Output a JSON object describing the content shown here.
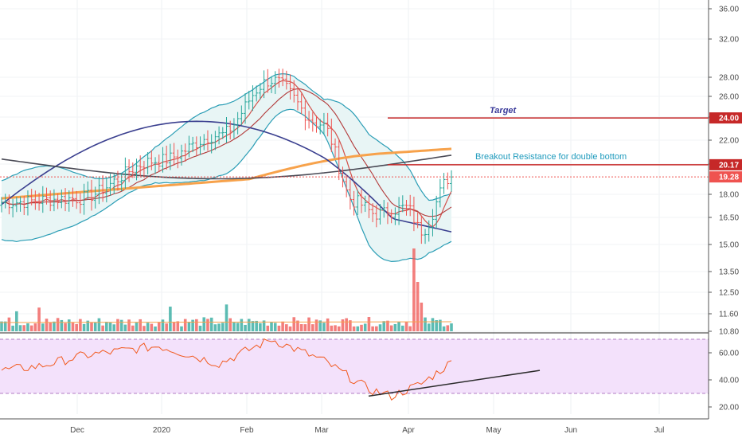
{
  "colors": {
    "bollinger_fill": "#e8f5f5",
    "bollinger_line": "#2a9db5",
    "sma_orange": "#f7a24b",
    "sma_navy": "#3a3f8f",
    "sma_black": "#4a4a55",
    "ema_red": "#d2504a",
    "bar_up": "#26a69a",
    "bar_down": "#ef5350",
    "rsi_fill": "#f3e1fb",
    "rsi_line": "#f25a1f",
    "level_red": "#c62828",
    "annotation_blue": "#1f9bbd",
    "annotation_navy": "#3a3a9a"
  },
  "chart_data": {
    "type": "ohlc",
    "x_labels": [
      "Dec",
      "2020",
      "Feb",
      "Mar",
      "Apr",
      "May",
      "Jun",
      "Jul"
    ],
    "y_ticks": [
      "36.00",
      "32.00",
      "28.00",
      "26.00",
      "24.00",
      "22.00",
      "20.00",
      "18.00",
      "16.50",
      "15.00",
      "13.50",
      "12.50",
      "11.60",
      "10.80"
    ],
    "y_scale": "log",
    "price_tags": [
      {
        "label": "24.00",
        "value": 24.0,
        "color": "#c62828"
      },
      {
        "label": "20.17",
        "value": 20.17,
        "color": "#c62828"
      },
      {
        "label": "19.28",
        "value": 19.28,
        "color": "#ef5350"
      }
    ],
    "rsi_ticks": [
      "60.00",
      "40.00",
      "20.00"
    ],
    "rsi_band": [
      30,
      70
    ],
    "annotations": {
      "target_label": "Target",
      "breakout_label": "Breakout Resistance for double bottom"
    },
    "lines": {
      "target_level": 24.0,
      "resistance_level": 20.17,
      "last_price": 19.28
    },
    "anchors": {
      "dec": 17.8,
      "jan": 20.5,
      "feb_mid": 27.6,
      "mar_start": 23.5,
      "mar_end": 16.8,
      "apr_start": 17.2,
      "apr_low": 15.8,
      "last": 19.28
    },
    "rsi_anchors": {
      "start": 47,
      "jan": 65,
      "feb_mid": 70,
      "mar_end": 28,
      "last": 53
    },
    "trendline": {
      "rsi_start": 28,
      "rsi_end": 47
    }
  }
}
